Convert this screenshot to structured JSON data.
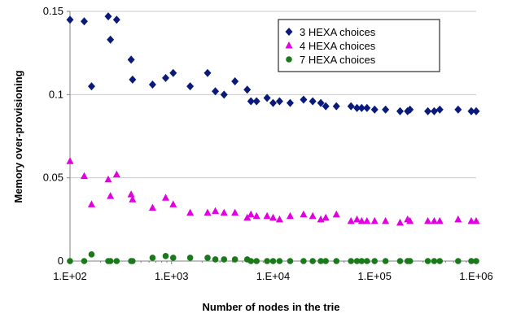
{
  "chart_data": {
    "type": "scatter",
    "title": "",
    "xlabel": "Number of nodes in the trie",
    "ylabel": "Memory over-provisioning",
    "xscale": "log",
    "xlim": [
      100,
      1000000
    ],
    "ylim": [
      0,
      0.15
    ],
    "xticks": [
      100,
      1000,
      10000,
      100000,
      1000000
    ],
    "xtick_labels": [
      "1.E+02",
      "1.E+03",
      "1.E+04",
      "1.E+05",
      "1.E+06"
    ],
    "yticks": [
      0,
      0.05,
      0.1,
      0.15
    ],
    "ytick_labels": [
      "0",
      "0.05",
      "0.1",
      "0.15"
    ],
    "grid": "horizontal",
    "legend_position": "top-right",
    "series": [
      {
        "name": "3 HEXA choices",
        "marker": "diamond",
        "color": "#0a1a7a",
        "points": [
          [
            100,
            0.145
          ],
          [
            138,
            0.144
          ],
          [
            163,
            0.105
          ],
          [
            238,
            0.147
          ],
          [
            250,
            0.133
          ],
          [
            288,
            0.145
          ],
          [
            400,
            0.121
          ],
          [
            413,
            0.109
          ],
          [
            650,
            0.106
          ],
          [
            875,
            0.11
          ],
          [
            1038,
            0.113
          ],
          [
            1525,
            0.105
          ],
          [
            2263,
            0.113
          ],
          [
            2700,
            0.102
          ],
          [
            3288,
            0.1
          ],
          [
            4213,
            0.108
          ],
          [
            5563,
            0.103
          ],
          [
            6050,
            0.096
          ],
          [
            6875,
            0.096
          ],
          [
            8725,
            0.098
          ],
          [
            10000,
            0.095
          ],
          [
            11575,
            0.096
          ],
          [
            14725,
            0.095
          ],
          [
            19950,
            0.097
          ],
          [
            24550,
            0.096
          ],
          [
            29500,
            0.095
          ],
          [
            33000,
            0.093
          ],
          [
            42000,
            0.093
          ],
          [
            58500,
            0.093
          ],
          [
            67000,
            0.092
          ],
          [
            74500,
            0.092
          ],
          [
            84000,
            0.092
          ],
          [
            100000,
            0.091
          ],
          [
            128000,
            0.091
          ],
          [
            178000,
            0.09
          ],
          [
            211000,
            0.09
          ],
          [
            223000,
            0.091
          ],
          [
            334000,
            0.09
          ],
          [
            386000,
            0.09
          ],
          [
            438000,
            0.091
          ],
          [
            664000,
            0.091
          ],
          [
            895000,
            0.09
          ],
          [
            1000000,
            0.09
          ]
        ]
      },
      {
        "name": "4 HEXA choices",
        "marker": "triangle",
        "color": "#e000e0",
        "points": [
          [
            100,
            0.06
          ],
          [
            138,
            0.051
          ],
          [
            163,
            0.034
          ],
          [
            238,
            0.049
          ],
          [
            250,
            0.039
          ],
          [
            288,
            0.052
          ],
          [
            400,
            0.04
          ],
          [
            413,
            0.037
          ],
          [
            650,
            0.032
          ],
          [
            875,
            0.038
          ],
          [
            1038,
            0.034
          ],
          [
            1525,
            0.029
          ],
          [
            2263,
            0.029
          ],
          [
            2700,
            0.03
          ],
          [
            3288,
            0.029
          ],
          [
            4213,
            0.029
          ],
          [
            5563,
            0.026
          ],
          [
            6050,
            0.028
          ],
          [
            6875,
            0.027
          ],
          [
            8725,
            0.027
          ],
          [
            10000,
            0.026
          ],
          [
            11575,
            0.025
          ],
          [
            14725,
            0.027
          ],
          [
            19950,
            0.028
          ],
          [
            24550,
            0.027
          ],
          [
            29500,
            0.025
          ],
          [
            33000,
            0.026
          ],
          [
            42000,
            0.028
          ],
          [
            58500,
            0.024
          ],
          [
            67000,
            0.025
          ],
          [
            74500,
            0.024
          ],
          [
            84000,
            0.024
          ],
          [
            100000,
            0.024
          ],
          [
            128000,
            0.024
          ],
          [
            178000,
            0.023
          ],
          [
            211000,
            0.025
          ],
          [
            223000,
            0.024
          ],
          [
            334000,
            0.024
          ],
          [
            386000,
            0.024
          ],
          [
            438000,
            0.024
          ],
          [
            664000,
            0.025
          ],
          [
            895000,
            0.024
          ],
          [
            1000000,
            0.024
          ]
        ]
      },
      {
        "name": "7 HEXA choices",
        "marker": "circle",
        "color": "#1a7a1a",
        "points": [
          [
            100,
            0.0
          ],
          [
            138,
            0.0
          ],
          [
            163,
            0.004
          ],
          [
            238,
            0.0
          ],
          [
            250,
            0.0
          ],
          [
            288,
            0.0
          ],
          [
            400,
            0.0
          ],
          [
            413,
            0.0
          ],
          [
            650,
            0.002
          ],
          [
            875,
            0.003
          ],
          [
            1038,
            0.002
          ],
          [
            1525,
            0.002
          ],
          [
            2263,
            0.002
          ],
          [
            2700,
            0.001
          ],
          [
            3288,
            0.001
          ],
          [
            4213,
            0.001
          ],
          [
            5563,
            0.001
          ],
          [
            6050,
            0.0
          ],
          [
            6875,
            0.0
          ],
          [
            8725,
            0.0
          ],
          [
            10000,
            0.0
          ],
          [
            11575,
            0.0
          ],
          [
            14725,
            0.0
          ],
          [
            19950,
            0.0
          ],
          [
            24550,
            0.0
          ],
          [
            29500,
            0.0
          ],
          [
            33000,
            0.0
          ],
          [
            42000,
            0.0
          ],
          [
            58500,
            0.0
          ],
          [
            67000,
            0.0
          ],
          [
            74500,
            0.0
          ],
          [
            84000,
            0.0
          ],
          [
            100000,
            0.0
          ],
          [
            128000,
            0.0
          ],
          [
            178000,
            0.0
          ],
          [
            211000,
            0.0
          ],
          [
            223000,
            0.0
          ],
          [
            334000,
            0.0
          ],
          [
            386000,
            0.0
          ],
          [
            438000,
            0.0
          ],
          [
            664000,
            0.0
          ],
          [
            895000,
            0.0
          ],
          [
            1000000,
            0.0
          ]
        ]
      }
    ]
  }
}
